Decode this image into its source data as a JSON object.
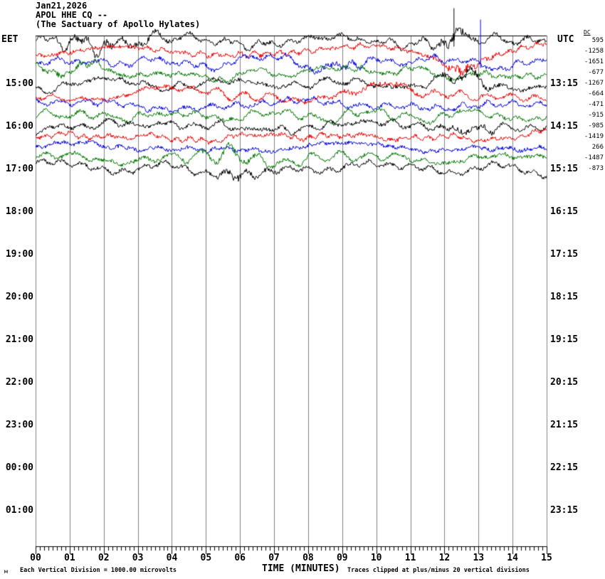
{
  "header": {
    "date": "Jan21,2026",
    "station": "APOL HHE CQ --",
    "location": "(The Sactuary of Apollo Hylates)"
  },
  "axes": {
    "left_unit": "EET",
    "right_unit": "UTC",
    "dc_header": "DC",
    "left_hours": [
      "15:00",
      "16:00",
      "17:00",
      "18:00",
      "19:00",
      "20:00",
      "21:00",
      "22:00",
      "23:00",
      "00:00",
      "01:00"
    ],
    "right_hours": [
      "13:15",
      "14:15",
      "15:15",
      "16:15",
      "17:15",
      "18:15",
      "19:15",
      "20:15",
      "21:15",
      "22:15",
      "23:15"
    ],
    "x_ticks": [
      "00",
      "01",
      "02",
      "03",
      "04",
      "05",
      "06",
      "07",
      "08",
      "09",
      "10",
      "11",
      "12",
      "13",
      "14",
      "15"
    ]
  },
  "footer": {
    "corner_glyph": "м",
    "left_note": "Each Vertical Division = 1000.00 microvolts",
    "x_label": "TIME (MINUTES)",
    "right_note": "Traces clipped at plus/minus 20 vertical divisions"
  },
  "colors": {
    "black": "#000000",
    "red": "#ee0000",
    "blue": "#0000dd",
    "green": "#007700",
    "grid": "#808080",
    "axis": "#000000"
  },
  "chart_data": {
    "type": "line",
    "kind": "helicorder-seismogram",
    "title": "APOL HHE CQ -- (The Sactuary of Apollo Hylates)",
    "x_label": "TIME (MINUTES)",
    "x_range_minutes": [
      0,
      15
    ],
    "minutes_per_row": 15,
    "rows_per_hour": 4,
    "division_microvolts": "1000.00",
    "clip_note": "Traces clipped at plus/minus 20 vertical divisions",
    "gen": {
      "noise": 2.5
    },
    "rows": [
      {
        "color": "black",
        "dc": "595",
        "seed": 11,
        "amp": 14,
        "bursts": [
          {
            "min": 2.0,
            "gain": 0.9,
            "w": 1.0
          },
          {
            "min": 12.3,
            "gain": 1.6,
            "w": 0.4
          }
        ],
        "spikes": [
          {
            "min": 12.28,
            "up": 46,
            "down": 8
          }
        ]
      },
      {
        "color": "red",
        "dc": "-1258",
        "seed": 22,
        "amp": 13,
        "bursts": [
          {
            "min": 12.4,
            "gain": 1.3,
            "w": 0.5
          }
        ],
        "spikes": []
      },
      {
        "color": "blue",
        "dc": "-1651",
        "seed": 33,
        "amp": 12,
        "bursts": [
          {
            "min": 8.8,
            "gain": 0.5,
            "w": 0.8
          }
        ],
        "spikes": [
          {
            "min": 13.06,
            "up": 60,
            "down": 8
          }
        ]
      },
      {
        "color": "green",
        "dc": "-677",
        "seed": 44,
        "amp": 14,
        "bursts": [
          {
            "min": 0.9,
            "gain": 0.6,
            "w": 0.7
          }
        ],
        "spikes": []
      },
      {
        "color": "black",
        "dc": "-1267",
        "seed": 55,
        "amp": 13,
        "bursts": [
          {
            "min": 12.5,
            "gain": 1.0,
            "w": 0.6
          }
        ],
        "spikes": []
      },
      {
        "color": "red",
        "dc": "-664",
        "seed": 66,
        "amp": 12,
        "bursts": [
          {
            "min": 10.4,
            "gain": 0.6,
            "w": 0.8
          }
        ],
        "spikes": []
      },
      {
        "color": "blue",
        "dc": "-471",
        "seed": 77,
        "amp": 11,
        "bursts": [],
        "spikes": []
      },
      {
        "color": "green",
        "dc": "-915",
        "seed": 88,
        "amp": 12,
        "bursts": [],
        "spikes": []
      },
      {
        "color": "black",
        "dc": "-985",
        "seed": 99,
        "amp": 12,
        "bursts": [
          {
            "min": 12.6,
            "gain": 0.8,
            "w": 0.5
          }
        ],
        "spikes": []
      },
      {
        "color": "red",
        "dc": "-1419",
        "seed": 110,
        "amp": 11,
        "bursts": [],
        "spikes": []
      },
      {
        "color": "blue",
        "dc": "266",
        "seed": 121,
        "amp": 9,
        "bursts": [],
        "spikes": []
      },
      {
        "color": "green",
        "dc": "-1487",
        "seed": 132,
        "amp": 12,
        "bursts": [
          {
            "min": 5.6,
            "gain": 0.6,
            "w": 0.6
          }
        ],
        "spikes": []
      },
      {
        "color": "black",
        "dc": "-873",
        "seed": 143,
        "amp": 13,
        "bursts": [
          {
            "min": 5.9,
            "gain": 0.9,
            "w": 0.5
          }
        ],
        "spikes": []
      }
    ]
  }
}
